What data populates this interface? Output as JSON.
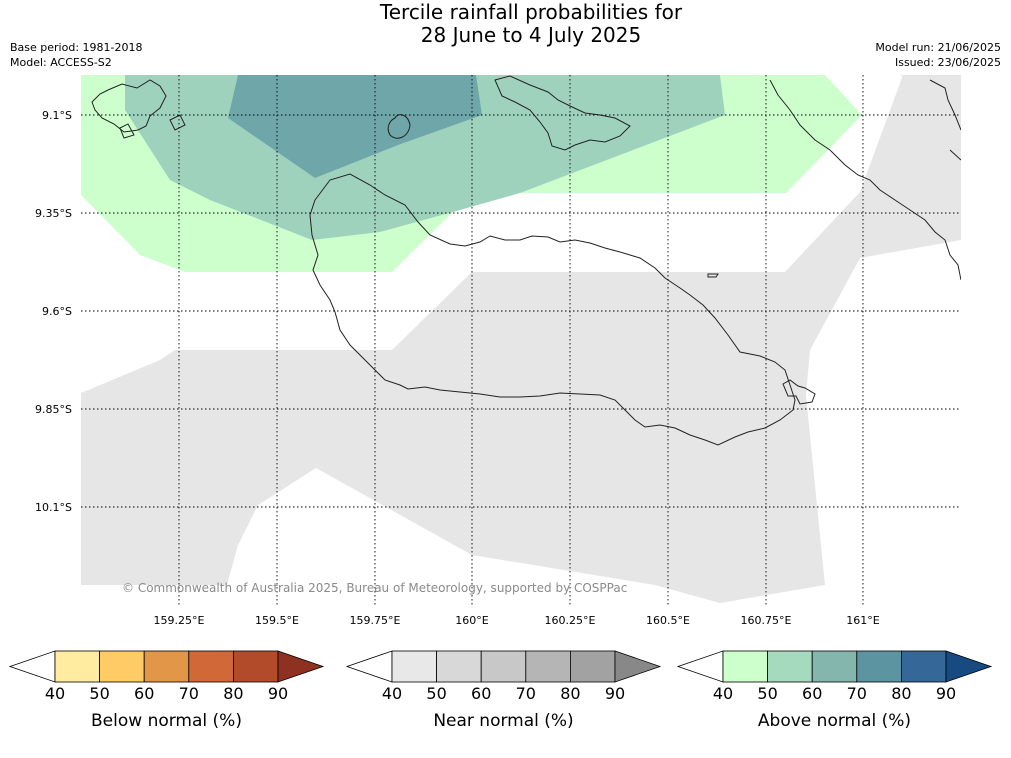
{
  "header": {
    "title_line1": "Tercile rainfall probabilities for",
    "title_line2": "28 June to 4 July 2025",
    "base_period": "Base period: 1981-2018",
    "model": "Model: ACCESS-S2",
    "model_run": "Model run: 21/06/2025",
    "issued": "Issued: 23/06/2025"
  },
  "map": {
    "lat_labels": [
      "9.1°S",
      "9.35°S",
      "9.6°S",
      "9.85°S",
      "10.1°S"
    ],
    "lon_labels": [
      "159.25°E",
      "159.5°E",
      "159.75°E",
      "160°E",
      "160.25°E",
      "160.5°E",
      "160.75°E",
      "161°E"
    ],
    "lat_range": [
      -10.3,
      -9.0
    ],
    "lon_range": [
      159.0,
      161.25
    ],
    "copyright": "© Commonwealth of Australia 2025, Bureau of Meteorology, supported by COSPPac"
  },
  "colors": {
    "above_50": "#ccffcc",
    "above_60": "#9fd2bd",
    "above_70": "#6fa6a9",
    "near_50": "#e6e6e6",
    "coast": "#222222",
    "grid": "#000000"
  },
  "colorbars": [
    {
      "label": "Below normal (%)",
      "ticks": [
        "40",
        "50",
        "60",
        "70",
        "80",
        "90"
      ],
      "colors": [
        "#ffffff",
        "#ffeca0",
        "#fecb66",
        "#e29647",
        "#d06937",
        "#b14b29",
        "#8f3121"
      ]
    },
    {
      "label": "Near normal (%)",
      "ticks": [
        "40",
        "50",
        "60",
        "70",
        "80",
        "90"
      ],
      "colors": [
        "#ffffff",
        "#e8e8e8",
        "#d8d8d8",
        "#c8c8c8",
        "#b5b5b5",
        "#a2a2a2",
        "#888888"
      ]
    },
    {
      "label": "Above normal (%)",
      "ticks": [
        "40",
        "50",
        "60",
        "70",
        "80",
        "90"
      ],
      "colors": [
        "#ffffff",
        "#ccffcc",
        "#a6dabe",
        "#84b6ad",
        "#5c94a2",
        "#356899",
        "#164a80"
      ]
    }
  ]
}
